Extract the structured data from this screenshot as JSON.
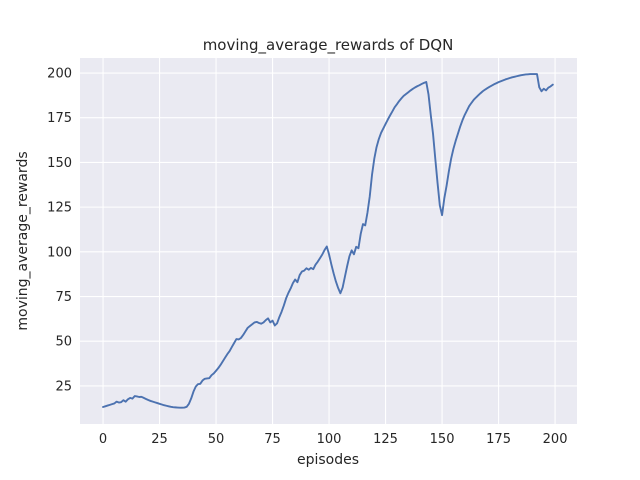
{
  "figure": {
    "title": "moving_average_rewards of DQN"
  },
  "chart_data": {
    "type": "line",
    "title": "moving_average_rewards of DQN",
    "xlabel": "episodes",
    "ylabel": "moving_average_rewards",
    "x_ticks": [
      0,
      25,
      50,
      75,
      100,
      125,
      150,
      175,
      200
    ],
    "y_ticks": [
      25,
      50,
      75,
      100,
      125,
      150,
      175,
      200
    ],
    "xlim": [
      -10.2,
      209.7
    ],
    "ylim": [
      3.7,
      208.4
    ],
    "grid": true,
    "legend_position": "none",
    "style": {
      "figure_bg": "#ffffff",
      "axes_bg": "#eaeaf2",
      "grid_color": "#ffffff",
      "text_color": "#262626",
      "line_color": "#4c72b0"
    },
    "series": [
      {
        "name": "moving_average_rewards",
        "color": "#4c72b0",
        "x_start": 0,
        "x_step": 1,
        "values": [
          13.2,
          13.6,
          14.0,
          14.4,
          14.8,
          15.2,
          16.2,
          15.7,
          15.9,
          17.0,
          16.2,
          17.5,
          18.3,
          17.9,
          19.3,
          19.1,
          18.8,
          18.9,
          18.3,
          17.7,
          17.1,
          16.6,
          16.2,
          15.8,
          15.4,
          15.0,
          14.6,
          14.2,
          13.9,
          13.6,
          13.3,
          13.1,
          13.0,
          12.9,
          12.8,
          12.8,
          12.9,
          13.3,
          15.0,
          18.0,
          21.8,
          24.6,
          26.0,
          26.2,
          28.0,
          29.0,
          29.2,
          29.3,
          31.0,
          32.0,
          33.5,
          35.0,
          36.8,
          38.8,
          40.8,
          42.8,
          44.5,
          46.8,
          49.0,
          51.2,
          51.0,
          51.8,
          53.5,
          55.5,
          57.5,
          58.5,
          59.5,
          60.5,
          60.8,
          60.2,
          59.8,
          60.5,
          61.8,
          62.8,
          60.5,
          61.5,
          58.8,
          60.0,
          63.5,
          66.5,
          70.0,
          74.0,
          77.0,
          79.5,
          82.5,
          84.5,
          83.0,
          87.0,
          89.0,
          89.5,
          90.8,
          90.0,
          91.0,
          90.3,
          92.8,
          94.5,
          96.5,
          98.5,
          101.0,
          103.0,
          98.5,
          93.0,
          88.0,
          83.5,
          79.8,
          76.8,
          80.0,
          86.0,
          92.0,
          97.5,
          100.8,
          98.6,
          102.8,
          102.0,
          110.0,
          115.5,
          114.8,
          122.0,
          131.0,
          143.0,
          152.0,
          158.5,
          163.0,
          166.5,
          169.0,
          171.5,
          174.0,
          176.3,
          178.5,
          180.8,
          182.5,
          184.3,
          185.8,
          187.2,
          188.2,
          189.2,
          190.2,
          191.1,
          191.9,
          192.6,
          193.2,
          193.9,
          194.5,
          195.0,
          188.0,
          176.5,
          166.0,
          152.0,
          138.5,
          126.0,
          120.5,
          130.0,
          137.0,
          145.0,
          152.0,
          157.5,
          162.0,
          166.0,
          170.0,
          173.5,
          176.5,
          179.0,
          181.5,
          183.3,
          185.0,
          186.3,
          187.5,
          188.7,
          189.8,
          190.7,
          191.5,
          192.3,
          193.0,
          193.7,
          194.3,
          194.9,
          195.4,
          195.9,
          196.4,
          196.8,
          197.2,
          197.6,
          197.9,
          198.2,
          198.5,
          198.8,
          199.0,
          199.2,
          199.3,
          199.4,
          199.4,
          199.4,
          199.4,
          192.0,
          189.8,
          191.2,
          190.3,
          191.8,
          192.5,
          193.5
        ]
      }
    ]
  }
}
